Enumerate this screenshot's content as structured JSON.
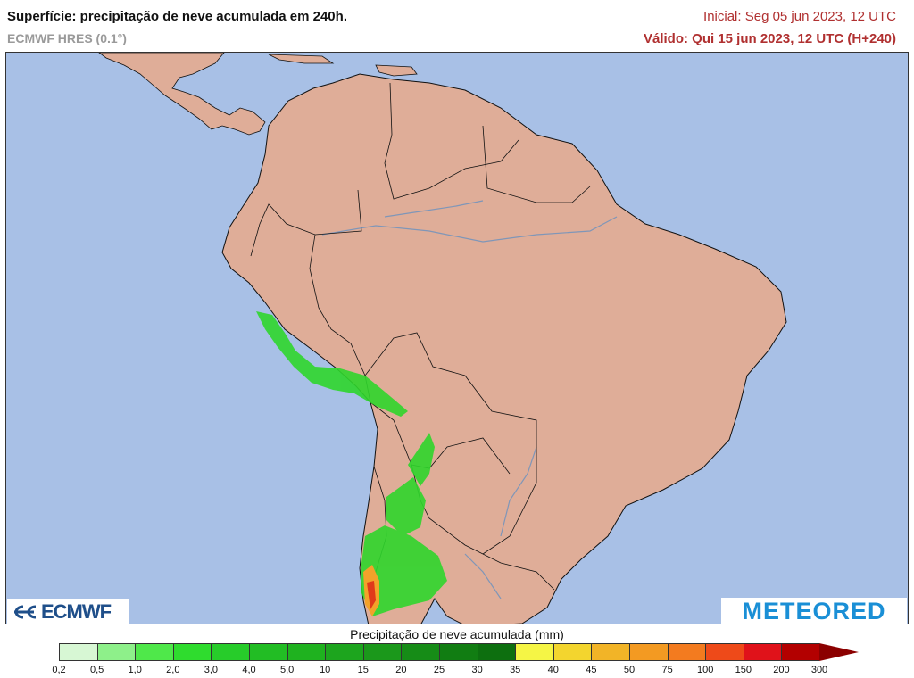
{
  "header": {
    "title": "Superfície: precipitação de neve acumulada em 240h.",
    "model": "ECMWF HRES (0.1°)",
    "init": "Inicial: Seg 05 jun 2023, 12 UTC",
    "valid": "Válido: Qui 15 jun 2023, 12 UTC (H+240)"
  },
  "logos": {
    "left": "ECMWF",
    "right": "METEORED"
  },
  "legend": {
    "title": "Precipitação de neve acumulada (mm)",
    "ticks": [
      "0,2",
      "0,5",
      "1,0",
      "2,0",
      "3,0",
      "4,0",
      "5,0",
      "10",
      "15",
      "20",
      "25",
      "30",
      "35",
      "40",
      "45",
      "50",
      "75",
      "100",
      "150",
      "200",
      "300"
    ],
    "colors": [
      "#d7f7d4",
      "#8ef08a",
      "#4fe84a",
      "#2fdc2e",
      "#27cc2a",
      "#22bd24",
      "#1fb21f",
      "#1da51e",
      "#1b981b",
      "#168c17",
      "#117d12",
      "#0d6f0f",
      "#f5f545",
      "#f3d52e",
      "#f2b427",
      "#f39a22",
      "#f37b1f",
      "#ee4a19",
      "#e0121a",
      "#b30000",
      "#8b0000"
    ]
  },
  "map": {
    "ocean_color": "#a8c0e6",
    "land_color": "#dfad98"
  }
}
